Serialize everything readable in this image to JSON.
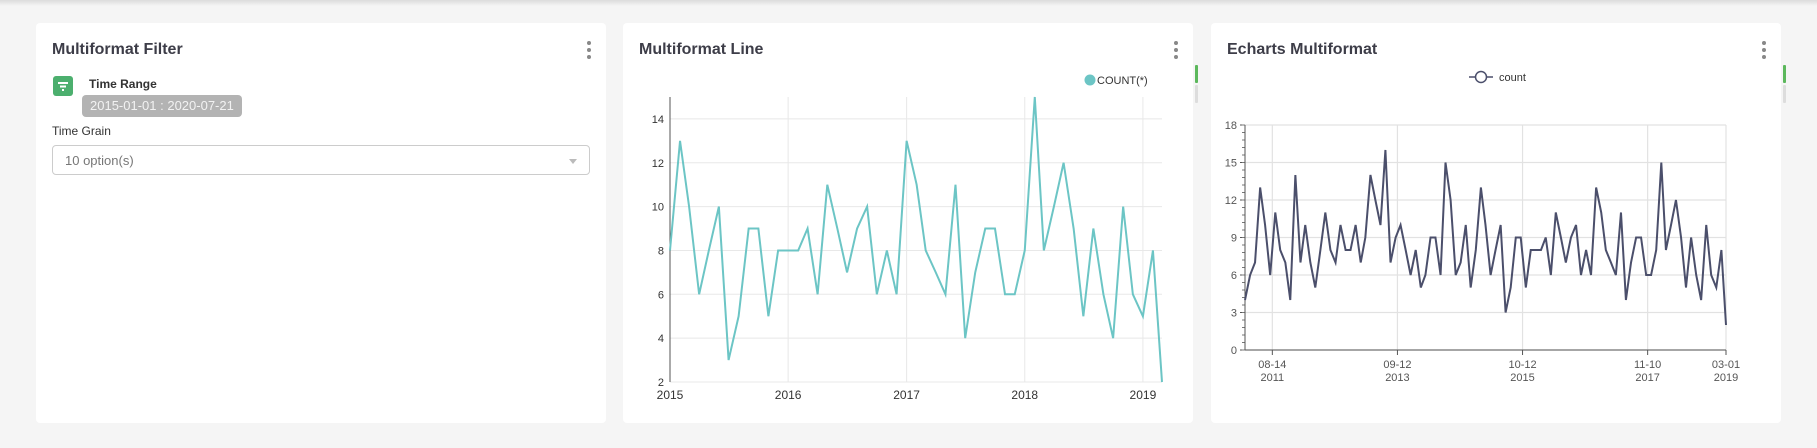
{
  "filter_card": {
    "title": "Multiformat Filter",
    "time_range_label": "Time Range",
    "time_range_value": "2015-01-01 : 2020-07-21",
    "time_grain_label": "Time Grain",
    "time_grain_value": "10 option(s)"
  },
  "line_card": {
    "title": "Multiformat Line"
  },
  "echarts_card": {
    "title": "Echarts Multiformat"
  },
  "colors": {
    "line": "#6cc5c5",
    "echarts": "#4b4f6b",
    "filter_icon": "#4caf6e"
  },
  "chart_data": [
    {
      "type": "line",
      "title": "Multiformat Line",
      "legend": [
        "COUNT(*)"
      ],
      "legend_position": "top-right",
      "x_start": "2015-01",
      "x_step": "month",
      "values": [
        8,
        13,
        10,
        6,
        8,
        10,
        3,
        5,
        9,
        9,
        5,
        8,
        8,
        8,
        9,
        6,
        11,
        9,
        7,
        9,
        10,
        6,
        8,
        6,
        13,
        11,
        8,
        7,
        6,
        11,
        4,
        7,
        9,
        9,
        6,
        6,
        8,
        15,
        8,
        10,
        12,
        9,
        5,
        9,
        6,
        4,
        10,
        6,
        5,
        8,
        2
      ],
      "xticks": [
        "2015",
        "2016",
        "2017",
        "2018",
        "2019"
      ],
      "yticks": [
        "2",
        "4",
        "6",
        "8",
        "10",
        "12",
        "14"
      ],
      "ylim": [
        2,
        15
      ],
      "grid": true
    },
    {
      "type": "line",
      "title": "Echarts Multiformat",
      "legend": [
        "count"
      ],
      "legend_position": "top-center",
      "x_start": "2011-03",
      "x_step": "month",
      "values": [
        4,
        6,
        7,
        13,
        10,
        6,
        11,
        8,
        7,
        4,
        14,
        7,
        10,
        7,
        5,
        8,
        11,
        8,
        7,
        10,
        8,
        8,
        10,
        7,
        9,
        14,
        12,
        10,
        16,
        7,
        9,
        10,
        8,
        6,
        8,
        5,
        6,
        9,
        9,
        6,
        15,
        12,
        6,
        7,
        10,
        5,
        8,
        13,
        10,
        6,
        8,
        10,
        3,
        5,
        9,
        9,
        5,
        8,
        8,
        8,
        9,
        6,
        11,
        9,
        7,
        9,
        10,
        6,
        8,
        6,
        13,
        11,
        8,
        7,
        6,
        11,
        4,
        7,
        9,
        9,
        6,
        6,
        8,
        15,
        8,
        10,
        12,
        9,
        5,
        9,
        6,
        4,
        10,
        6,
        5,
        8,
        2
      ],
      "xticks": [
        {
          "date": "2011-08-14",
          "line1": "08-14",
          "line2": "2011"
        },
        {
          "date": "2013-09-12",
          "line1": "09-12",
          "line2": "2013"
        },
        {
          "date": "2015-10-12",
          "line1": "10-12",
          "line2": "2015"
        },
        {
          "date": "2017-11-10",
          "line1": "11-10",
          "line2": "2017"
        },
        {
          "date": "2019-03-01",
          "line1": "03-01",
          "line2": "2019"
        }
      ],
      "yticks": [
        "0",
        "3",
        "6",
        "9",
        "12",
        "15",
        "18"
      ],
      "ylim": [
        0,
        18
      ],
      "grid": true
    }
  ]
}
